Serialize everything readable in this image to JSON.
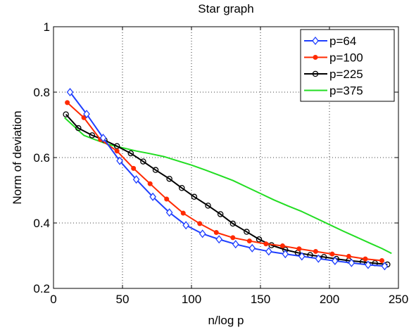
{
  "chart_data": {
    "type": "line",
    "title": "Star graph",
    "xlabel": "n/log p",
    "ylabel": "Norm of deviation",
    "xlim": [
      0,
      250
    ],
    "ylim": [
      0.2,
      1.0
    ],
    "x_ticks": [
      0,
      50,
      100,
      150,
      200,
      250
    ],
    "y_ticks": [
      0.2,
      0.4,
      0.6,
      0.8,
      1.0
    ],
    "x_tick_labels": [
      "0",
      "50",
      "100",
      "150",
      "200",
      "250"
    ],
    "y_tick_labels": [
      "0.2",
      "0.4",
      "0.6",
      "0.8",
      "1"
    ],
    "grid": true,
    "legend_position": "top-right",
    "series": [
      {
        "name": "p=64",
        "color": "#1f3fff",
        "marker": "diamond",
        "x": [
          12,
          24,
          36,
          48,
          60,
          72,
          84,
          96,
          108,
          120,
          132,
          144,
          156,
          168,
          180,
          192,
          204,
          216,
          228,
          240
        ],
        "y": [
          0.8,
          0.733,
          0.66,
          0.59,
          0.533,
          0.48,
          0.432,
          0.393,
          0.367,
          0.35,
          0.335,
          0.323,
          0.313,
          0.305,
          0.298,
          0.291,
          0.284,
          0.278,
          0.272,
          0.268
        ]
      },
      {
        "name": "p=100",
        "color": "#ff2a00",
        "marker": "dot",
        "x": [
          10,
          22,
          34,
          46,
          58,
          70,
          82,
          94,
          106,
          118,
          130,
          142,
          154,
          166,
          178,
          190,
          202,
          214,
          226,
          238
        ],
        "y": [
          0.768,
          0.722,
          0.655,
          0.62,
          0.567,
          0.52,
          0.473,
          0.43,
          0.398,
          0.371,
          0.355,
          0.345,
          0.336,
          0.33,
          0.321,
          0.313,
          0.305,
          0.298,
          0.29,
          0.285
        ]
      },
      {
        "name": "p=225",
        "color": "#000000",
        "marker": "circle",
        "x": [
          9,
          18,
          28,
          37,
          46,
          56,
          65,
          74,
          84,
          93,
          102,
          112,
          121,
          130,
          140,
          149,
          158,
          168,
          177,
          186,
          196,
          205,
          214,
          224,
          233,
          242
        ],
        "y": [
          0.732,
          0.69,
          0.668,
          0.653,
          0.635,
          0.613,
          0.588,
          0.562,
          0.535,
          0.507,
          0.48,
          0.453,
          0.427,
          0.398,
          0.373,
          0.35,
          0.332,
          0.318,
          0.309,
          0.302,
          0.296,
          0.29,
          0.285,
          0.281,
          0.277,
          0.273
        ]
      },
      {
        "name": "p=375",
        "color": "#22dd22",
        "marker": "none",
        "x": [
          8,
          15,
          22,
          30,
          40,
          50,
          60,
          70,
          80,
          90,
          100,
          110,
          120,
          130,
          140,
          150,
          160,
          170,
          180,
          190,
          200,
          210,
          220,
          230,
          238,
          245
        ],
        "y": [
          0.722,
          0.695,
          0.668,
          0.655,
          0.64,
          0.63,
          0.62,
          0.612,
          0.603,
          0.59,
          0.577,
          0.562,
          0.546,
          0.53,
          0.51,
          0.49,
          0.47,
          0.452,
          0.435,
          0.415,
          0.395,
          0.375,
          0.356,
          0.337,
          0.322,
          0.307
        ]
      }
    ]
  }
}
